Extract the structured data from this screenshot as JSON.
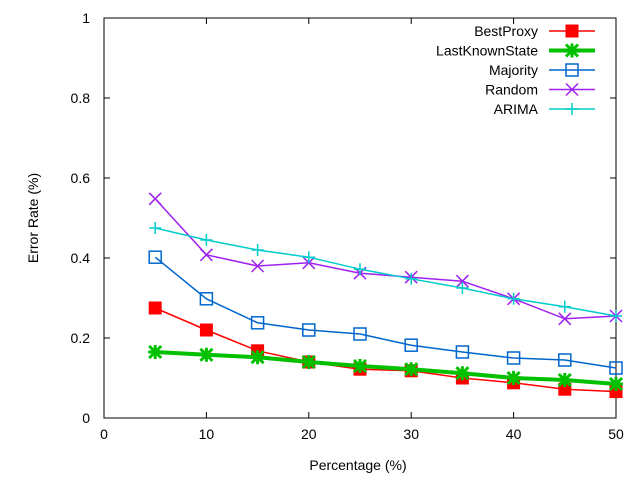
{
  "chart_data": {
    "type": "line",
    "title": "",
    "xlabel": "Percentage (%)",
    "ylabel": "Error Rate (%)",
    "xlim": [
      0,
      50
    ],
    "ylim": [
      0,
      1
    ],
    "xticks": [
      0,
      10,
      20,
      30,
      40,
      50
    ],
    "yticks": [
      0,
      0.2,
      0.4,
      0.6,
      0.8,
      1
    ],
    "ytick_labels": [
      "0",
      "0.2",
      "0.4",
      "0.6",
      "0.8",
      "1"
    ],
    "grid": false,
    "legend_position": "top-right",
    "x": [
      5,
      10,
      15,
      20,
      25,
      30,
      35,
      40,
      45,
      50
    ],
    "series": [
      {
        "name": "BestProxy",
        "color": "#ff0000",
        "marker": "filled-square",
        "values": [
          0.275,
          0.22,
          0.168,
          0.14,
          0.122,
          0.118,
          0.1,
          0.088,
          0.072,
          0.066
        ]
      },
      {
        "name": "LastKnownState",
        "color": "#00c000",
        "marker": "star",
        "thick": true,
        "values": [
          0.165,
          0.158,
          0.152,
          0.14,
          0.13,
          0.122,
          0.112,
          0.1,
          0.095,
          0.085
        ]
      },
      {
        "name": "Majority",
        "color": "#0066cc",
        "marker": "open-square",
        "values": [
          0.402,
          0.298,
          0.238,
          0.22,
          0.21,
          0.182,
          0.165,
          0.15,
          0.145,
          0.125
        ]
      },
      {
        "name": "Random",
        "color": "#a020f0",
        "marker": "cross",
        "values": [
          0.548,
          0.408,
          0.38,
          0.388,
          0.362,
          0.352,
          0.342,
          0.298,
          0.248,
          0.255
        ]
      },
      {
        "name": "ARIMA",
        "color": "#00cccc",
        "marker": "plus",
        "values": [
          0.475,
          0.445,
          0.42,
          0.402,
          0.372,
          0.348,
          0.325,
          0.298,
          0.278,
          0.255
        ]
      }
    ]
  }
}
